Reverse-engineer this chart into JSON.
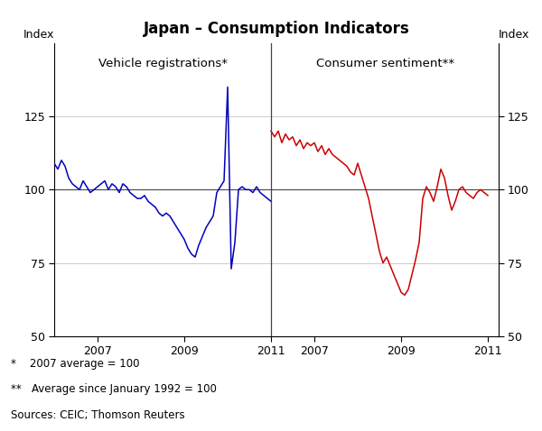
{
  "title": "Japan – Consumption Indicators",
  "left_label": "Vehicle registrations*",
  "right_label": "Consumer sentiment**",
  "ylabel_left": "Index",
  "ylabel_right": "Index",
  "ylim": [
    50,
    150
  ],
  "yticks": [
    50,
    75,
    100,
    125
  ],
  "xlim": [
    2006.0,
    2016.25
  ],
  "divider_x": 2011.0,
  "footnote1": "*    2007 average = 100",
  "footnote2": "**   Average since January 1992 = 100",
  "footnote3": "Sources: CEIC; Thomson Reuters",
  "line_color_left": "#0000BB",
  "line_color_right": "#CC0000",
  "grid_color": "#CCCCCC",
  "hline_color": "#444444",
  "vline_color": "#444444",
  "background_color": "#FFFFFF",
  "vehicle_x": [
    2006.0,
    2006.083,
    2006.167,
    2006.25,
    2006.333,
    2006.417,
    2006.5,
    2006.583,
    2006.667,
    2006.75,
    2006.833,
    2006.917,
    2007.0,
    2007.083,
    2007.167,
    2007.25,
    2007.333,
    2007.417,
    2007.5,
    2007.583,
    2007.667,
    2007.75,
    2007.833,
    2007.917,
    2008.0,
    2008.083,
    2008.167,
    2008.25,
    2008.333,
    2008.417,
    2008.5,
    2008.583,
    2008.667,
    2008.75,
    2008.833,
    2008.917,
    2009.0,
    2009.083,
    2009.167,
    2009.25,
    2009.333,
    2009.417,
    2009.5,
    2009.583,
    2009.667,
    2009.75,
    2009.833,
    2009.917,
    2010.0,
    2010.083,
    2010.167,
    2010.25,
    2010.333,
    2010.417,
    2010.5,
    2010.583,
    2010.667,
    2010.75,
    2010.833,
    2010.917,
    2011.0
  ],
  "vehicle_y": [
    109,
    107,
    110,
    108,
    104,
    102,
    101,
    100,
    103,
    101,
    99,
    100,
    101,
    102,
    103,
    100,
    102,
    101,
    99,
    102,
    101,
    99,
    98,
    97,
    97,
    98,
    96,
    95,
    94,
    92,
    91,
    92,
    91,
    89,
    87,
    85,
    83,
    80,
    78,
    77,
    81,
    84,
    87,
    89,
    91,
    99,
    101,
    103,
    135,
    73,
    82,
    100,
    101,
    100,
    100,
    99,
    101,
    99,
    98,
    97,
    96
  ],
  "sentiment_x": [
    2006.0,
    2006.083,
    2006.167,
    2006.25,
    2006.333,
    2006.417,
    2006.5,
    2006.583,
    2006.667,
    2006.75,
    2006.833,
    2006.917,
    2007.0,
    2007.083,
    2007.167,
    2007.25,
    2007.333,
    2007.417,
    2007.5,
    2007.583,
    2007.667,
    2007.75,
    2007.833,
    2007.917,
    2008.0,
    2008.083,
    2008.167,
    2008.25,
    2008.333,
    2008.417,
    2008.5,
    2008.583,
    2008.667,
    2008.75,
    2008.833,
    2008.917,
    2009.0,
    2009.083,
    2009.167,
    2009.25,
    2009.333,
    2009.417,
    2009.5,
    2009.583,
    2009.667,
    2009.75,
    2009.833,
    2009.917,
    2010.0,
    2010.083,
    2010.167,
    2010.25,
    2010.333,
    2010.417,
    2010.5,
    2010.583,
    2010.667,
    2010.75,
    2010.833,
    2010.917,
    2011.0
  ],
  "sentiment_y": [
    120,
    118,
    120,
    116,
    119,
    117,
    118,
    115,
    117,
    114,
    116,
    115,
    116,
    113,
    115,
    112,
    114,
    112,
    111,
    110,
    109,
    108,
    106,
    105,
    109,
    105,
    101,
    97,
    91,
    85,
    79,
    75,
    77,
    74,
    71,
    68,
    65,
    64,
    66,
    71,
    76,
    82,
    97,
    101,
    99,
    96,
    101,
    107,
    104,
    98,
    93,
    96,
    100,
    101,
    99,
    98,
    97,
    99,
    100,
    99,
    98
  ]
}
